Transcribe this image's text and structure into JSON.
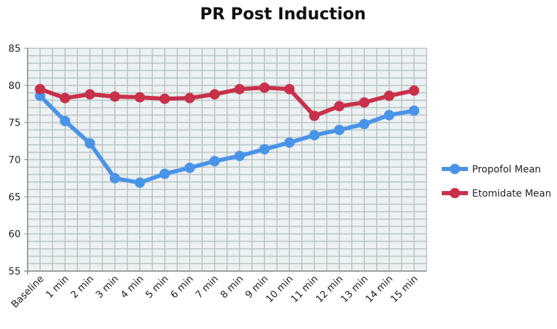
{
  "chart_data": {
    "type": "line",
    "title": "PR Post Induction",
    "categories": [
      "Baseline",
      "1 min",
      "2 min",
      "3 min",
      "4 min",
      "5 min",
      "6 min",
      "7 min",
      "8 min",
      "9 min",
      "10 min",
      "11 min",
      "12 min",
      "13 min",
      "14 min",
      "15 min"
    ],
    "series": [
      {
        "name": "Propofol Mean",
        "color": "#4a94e8",
        "values": [
          78.6,
          75.2,
          72.2,
          67.5,
          66.9,
          68.1,
          68.9,
          69.8,
          70.5,
          71.4,
          72.3,
          73.3,
          74.0,
          74.8,
          76.0,
          76.6
        ]
      },
      {
        "name": "Etomidate Mean",
        "color": "#c8314a",
        "values": [
          79.5,
          78.3,
          78.8,
          78.5,
          78.4,
          78.2,
          78.3,
          78.8,
          79.5,
          79.7,
          79.5,
          75.9,
          77.2,
          77.7,
          78.6,
          79.3
        ]
      }
    ],
    "ylim": [
      55,
      85
    ],
    "yticks": [
      55,
      60,
      65,
      70,
      75,
      80,
      85
    ],
    "grid": true,
    "legend": "right",
    "plot_background": "#edf1f3",
    "grid_color": "#b6c3c2"
  }
}
